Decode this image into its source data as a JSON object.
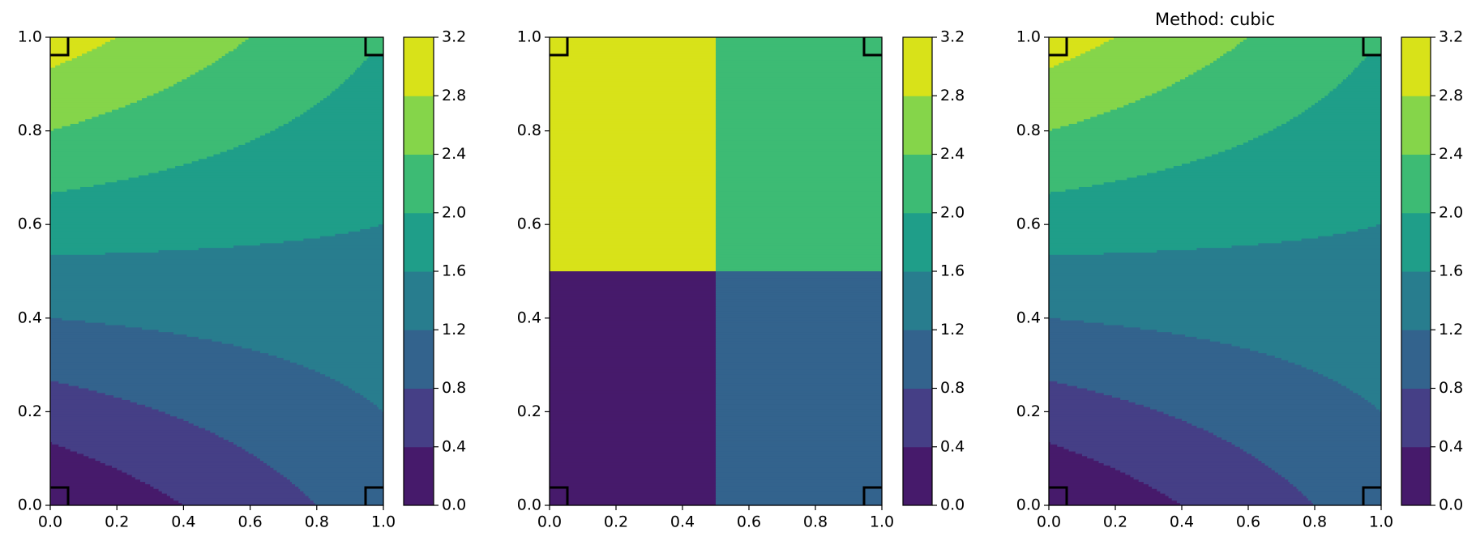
{
  "chart_data": [
    {
      "type": "contour",
      "interpolation": "linear",
      "x": [
        0,
        1,
        0,
        1
      ],
      "y": [
        0,
        0,
        1,
        1
      ],
      "z": [
        0,
        1,
        3,
        2
      ],
      "xlim": [
        0,
        1
      ],
      "ylim": [
        0,
        1
      ],
      "xticks": [
        {
          "value": 0,
          "label": "0.0"
        },
        {
          "value": 0.2,
          "label": "0.2"
        },
        {
          "value": 0.4,
          "label": "0.4"
        },
        {
          "value": 0.6,
          "label": "0.6"
        },
        {
          "value": 0.8,
          "label": "0.8"
        },
        {
          "value": 1,
          "label": "1.0"
        }
      ],
      "yticks": [
        {
          "value": 0,
          "label": "0.0"
        },
        {
          "value": 0.2,
          "label": "0.2"
        },
        {
          "value": 0.4,
          "label": "0.4"
        },
        {
          "value": 0.6,
          "label": "0.6"
        },
        {
          "value": 0.8,
          "label": "0.8"
        },
        {
          "value": 1,
          "label": "1.0"
        }
      ],
      "levels": [
        {
          "value": 0,
          "label": "0.0"
        },
        {
          "value": 0.4,
          "label": "0.4"
        },
        {
          "value": 0.8,
          "label": "0.8"
        },
        {
          "value": 1.2,
          "label": "1.2"
        },
        {
          "value": 1.6,
          "label": "1.6"
        },
        {
          "value": 2.0,
          "label": "2.0"
        },
        {
          "value": 2.4,
          "label": "2.4"
        },
        {
          "value": 2.8,
          "label": "2.8"
        },
        {
          "value": 3.2,
          "label": "3.2"
        }
      ],
      "colors": [
        "#461a6b",
        "#453f86",
        "#33638d",
        "#287d8e",
        "#1f9e89",
        "#3dbb74",
        "#85d54a",
        "#d8e219"
      ]
    },
    {
      "type": "contour",
      "interpolation": "nearest",
      "x": [
        0,
        1,
        0,
        1
      ],
      "y": [
        0,
        0,
        1,
        1
      ],
      "z": [
        0,
        1,
        3,
        2
      ],
      "xlim": [
        0,
        1
      ],
      "ylim": [
        0,
        1
      ],
      "xticks": [
        {
          "value": 0,
          "label": "0.0"
        },
        {
          "value": 0.2,
          "label": "0.2"
        },
        {
          "value": 0.4,
          "label": "0.4"
        },
        {
          "value": 0.6,
          "label": "0.6"
        },
        {
          "value": 0.8,
          "label": "0.8"
        },
        {
          "value": 1,
          "label": "1.0"
        }
      ],
      "yticks": [
        {
          "value": 0,
          "label": "0.0"
        },
        {
          "value": 0.2,
          "label": "0.2"
        },
        {
          "value": 0.4,
          "label": "0.4"
        },
        {
          "value": 0.6,
          "label": "0.6"
        },
        {
          "value": 0.8,
          "label": "0.8"
        },
        {
          "value": 1,
          "label": "1.0"
        }
      ],
      "levels": [
        {
          "value": 0,
          "label": "0.0"
        },
        {
          "value": 0.4,
          "label": "0.4"
        },
        {
          "value": 0.8,
          "label": "0.8"
        },
        {
          "value": 1.2,
          "label": "1.2"
        },
        {
          "value": 1.6,
          "label": "1.6"
        },
        {
          "value": 2.0,
          "label": "2.0"
        },
        {
          "value": 2.4,
          "label": "2.4"
        },
        {
          "value": 2.8,
          "label": "2.8"
        },
        {
          "value": 3.2,
          "label": "3.2"
        }
      ],
      "colors": [
        "#461a6b",
        "#453f86",
        "#33638d",
        "#287d8e",
        "#1f9e89",
        "#3dbb74",
        "#85d54a",
        "#d8e219"
      ]
    },
    {
      "type": "contour",
      "interpolation": "cubic",
      "title": "Method: cubic",
      "x": [
        0,
        1,
        0,
        1
      ],
      "y": [
        0,
        0,
        1,
        1
      ],
      "z": [
        0,
        1,
        3,
        2
      ],
      "xlim": [
        0,
        1
      ],
      "ylim": [
        0,
        1
      ],
      "xticks": [
        {
          "value": 0,
          "label": "0.0"
        },
        {
          "value": 0.2,
          "label": "0.2"
        },
        {
          "value": 0.4,
          "label": "0.4"
        },
        {
          "value": 0.6,
          "label": "0.6"
        },
        {
          "value": 0.8,
          "label": "0.8"
        },
        {
          "value": 1,
          "label": "1.0"
        }
      ],
      "yticks": [
        {
          "value": 0,
          "label": "0.0"
        },
        {
          "value": 0.2,
          "label": "0.2"
        },
        {
          "value": 0.4,
          "label": "0.4"
        },
        {
          "value": 0.6,
          "label": "0.6"
        },
        {
          "value": 0.8,
          "label": "0.8"
        },
        {
          "value": 1,
          "label": "1.0"
        }
      ],
      "levels": [
        {
          "value": 0,
          "label": "0.0"
        },
        {
          "value": 0.4,
          "label": "0.4"
        },
        {
          "value": 0.8,
          "label": "0.8"
        },
        {
          "value": 1.2,
          "label": "1.2"
        },
        {
          "value": 1.6,
          "label": "1.6"
        },
        {
          "value": 2.0,
          "label": "2.0"
        },
        {
          "value": 2.4,
          "label": "2.4"
        },
        {
          "value": 2.8,
          "label": "2.8"
        },
        {
          "value": 3.2,
          "label": "3.2"
        }
      ],
      "colors": [
        "#461a6b",
        "#453f86",
        "#33638d",
        "#287d8e",
        "#1f9e89",
        "#3dbb74",
        "#85d54a",
        "#d8e219"
      ]
    }
  ]
}
